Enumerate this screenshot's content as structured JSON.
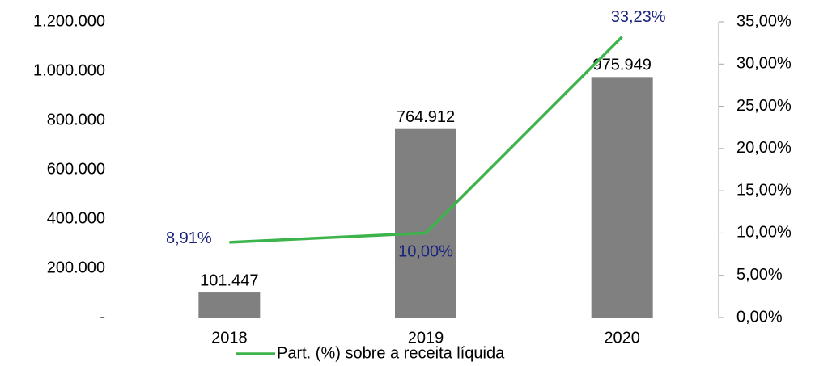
{
  "chart_data": {
    "type": "combo",
    "categories": [
      "2018",
      "2019",
      "2020"
    ],
    "series": [
      {
        "type": "bar",
        "color": "#808080",
        "values": [
          101447,
          764912,
          975949
        ],
        "value_labels": [
          "101.447",
          "764.912",
          "975.949"
        ]
      },
      {
        "name": "Part. (%) sobre a receita líquida",
        "type": "line",
        "axis": "y2",
        "color": "#3cb44b",
        "label_color": "#1a237e",
        "values": [
          8.91,
          10.0,
          33.23
        ],
        "value_labels": [
          "8,91%",
          "10,00%",
          "33,23%"
        ]
      }
    ],
    "ylim": [
      0,
      1200000
    ],
    "yticks": [
      {
        "value": 0,
        "label": "-"
      },
      {
        "value": 200000,
        "label": "200.000"
      },
      {
        "value": 400000,
        "label": "400.000"
      },
      {
        "value": 600000,
        "label": "600.000"
      },
      {
        "value": 800000,
        "label": "800.000"
      },
      {
        "value": 1000000,
        "label": "1.000.000"
      },
      {
        "value": 1200000,
        "label": "1.200.000"
      }
    ],
    "y2lim": [
      0,
      35
    ],
    "y2ticks": [
      {
        "value": 0,
        "label": "0,00%"
      },
      {
        "value": 5,
        "label": "5,00%"
      },
      {
        "value": 10,
        "label": "10,00%"
      },
      {
        "value": 15,
        "label": "15,00%"
      },
      {
        "value": 20,
        "label": "20,00%"
      },
      {
        "value": 25,
        "label": "25,00%"
      },
      {
        "value": 30,
        "label": "30,00%"
      },
      {
        "value": 35,
        "label": "35,00%"
      }
    ],
    "legend": "bottom"
  }
}
